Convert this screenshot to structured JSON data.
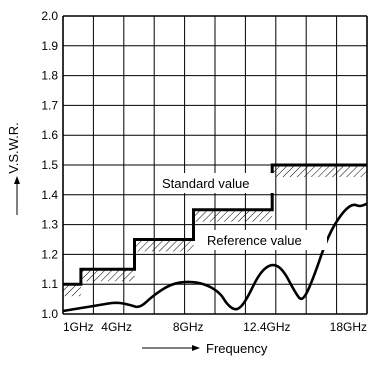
{
  "chart_data": {
    "type": "line",
    "xlabel": "Frequency",
    "ylabel": "V.S.W.R.",
    "ylim": [
      1.0,
      2.0
    ],
    "xlim_ghz": [
      1,
      18
    ],
    "x_ticks": [
      {
        "value": 1,
        "label": "1GHz"
      },
      {
        "value": 4,
        "label": "4GHz"
      },
      {
        "value": 8,
        "label": "8GHz"
      },
      {
        "value": 12.4,
        "label": "12.4GHz"
      },
      {
        "value": 18,
        "label": "18GHz"
      }
    ],
    "y_ticks": [
      "1.0",
      "1.1",
      "1.2",
      "1.3",
      "1.4",
      "1.5",
      "1.6",
      "1.7",
      "1.8",
      "1.9",
      "2.0"
    ],
    "grid": true,
    "annotations": {
      "standard": "Standard value",
      "reference": "Reference value"
    },
    "series": [
      {
        "name": "Standard value",
        "kind": "step",
        "points": [
          {
            "x": 1,
            "y": 1.1
          },
          {
            "x": 2,
            "y": 1.1
          },
          {
            "x": 2,
            "y": 1.15
          },
          {
            "x": 5,
            "y": 1.15
          },
          {
            "x": 5,
            "y": 1.25
          },
          {
            "x": 8.3,
            "y": 1.25
          },
          {
            "x": 8.3,
            "y": 1.35
          },
          {
            "x": 12.7,
            "y": 1.35
          },
          {
            "x": 12.7,
            "y": 1.5
          },
          {
            "x": 18,
            "y": 1.5
          }
        ]
      },
      {
        "name": "Reference value",
        "kind": "curve",
        "points": [
          {
            "x": 1,
            "y": 1.01
          },
          {
            "x": 2,
            "y": 1.02
          },
          {
            "x": 3,
            "y": 1.03
          },
          {
            "x": 4,
            "y": 1.04
          },
          {
            "x": 4.8,
            "y": 1.03
          },
          {
            "x": 5.3,
            "y": 1.02
          },
          {
            "x": 6,
            "y": 1.06
          },
          {
            "x": 7,
            "y": 1.1
          },
          {
            "x": 8,
            "y": 1.11
          },
          {
            "x": 9,
            "y": 1.1
          },
          {
            "x": 9.8,
            "y": 1.07
          },
          {
            "x": 10.2,
            "y": 1.03
          },
          {
            "x": 10.7,
            "y": 1.01
          },
          {
            "x": 11.2,
            "y": 1.04
          },
          {
            "x": 12,
            "y": 1.14
          },
          {
            "x": 12.7,
            "y": 1.17
          },
          {
            "x": 13.3,
            "y": 1.15
          },
          {
            "x": 14,
            "y": 1.07
          },
          {
            "x": 14.4,
            "y": 1.04
          },
          {
            "x": 15,
            "y": 1.12
          },
          {
            "x": 15.8,
            "y": 1.26
          },
          {
            "x": 16.6,
            "y": 1.34
          },
          {
            "x": 17.2,
            "y": 1.37
          },
          {
            "x": 17.6,
            "y": 1.36
          },
          {
            "x": 18,
            "y": 1.37
          }
        ]
      }
    ]
  }
}
